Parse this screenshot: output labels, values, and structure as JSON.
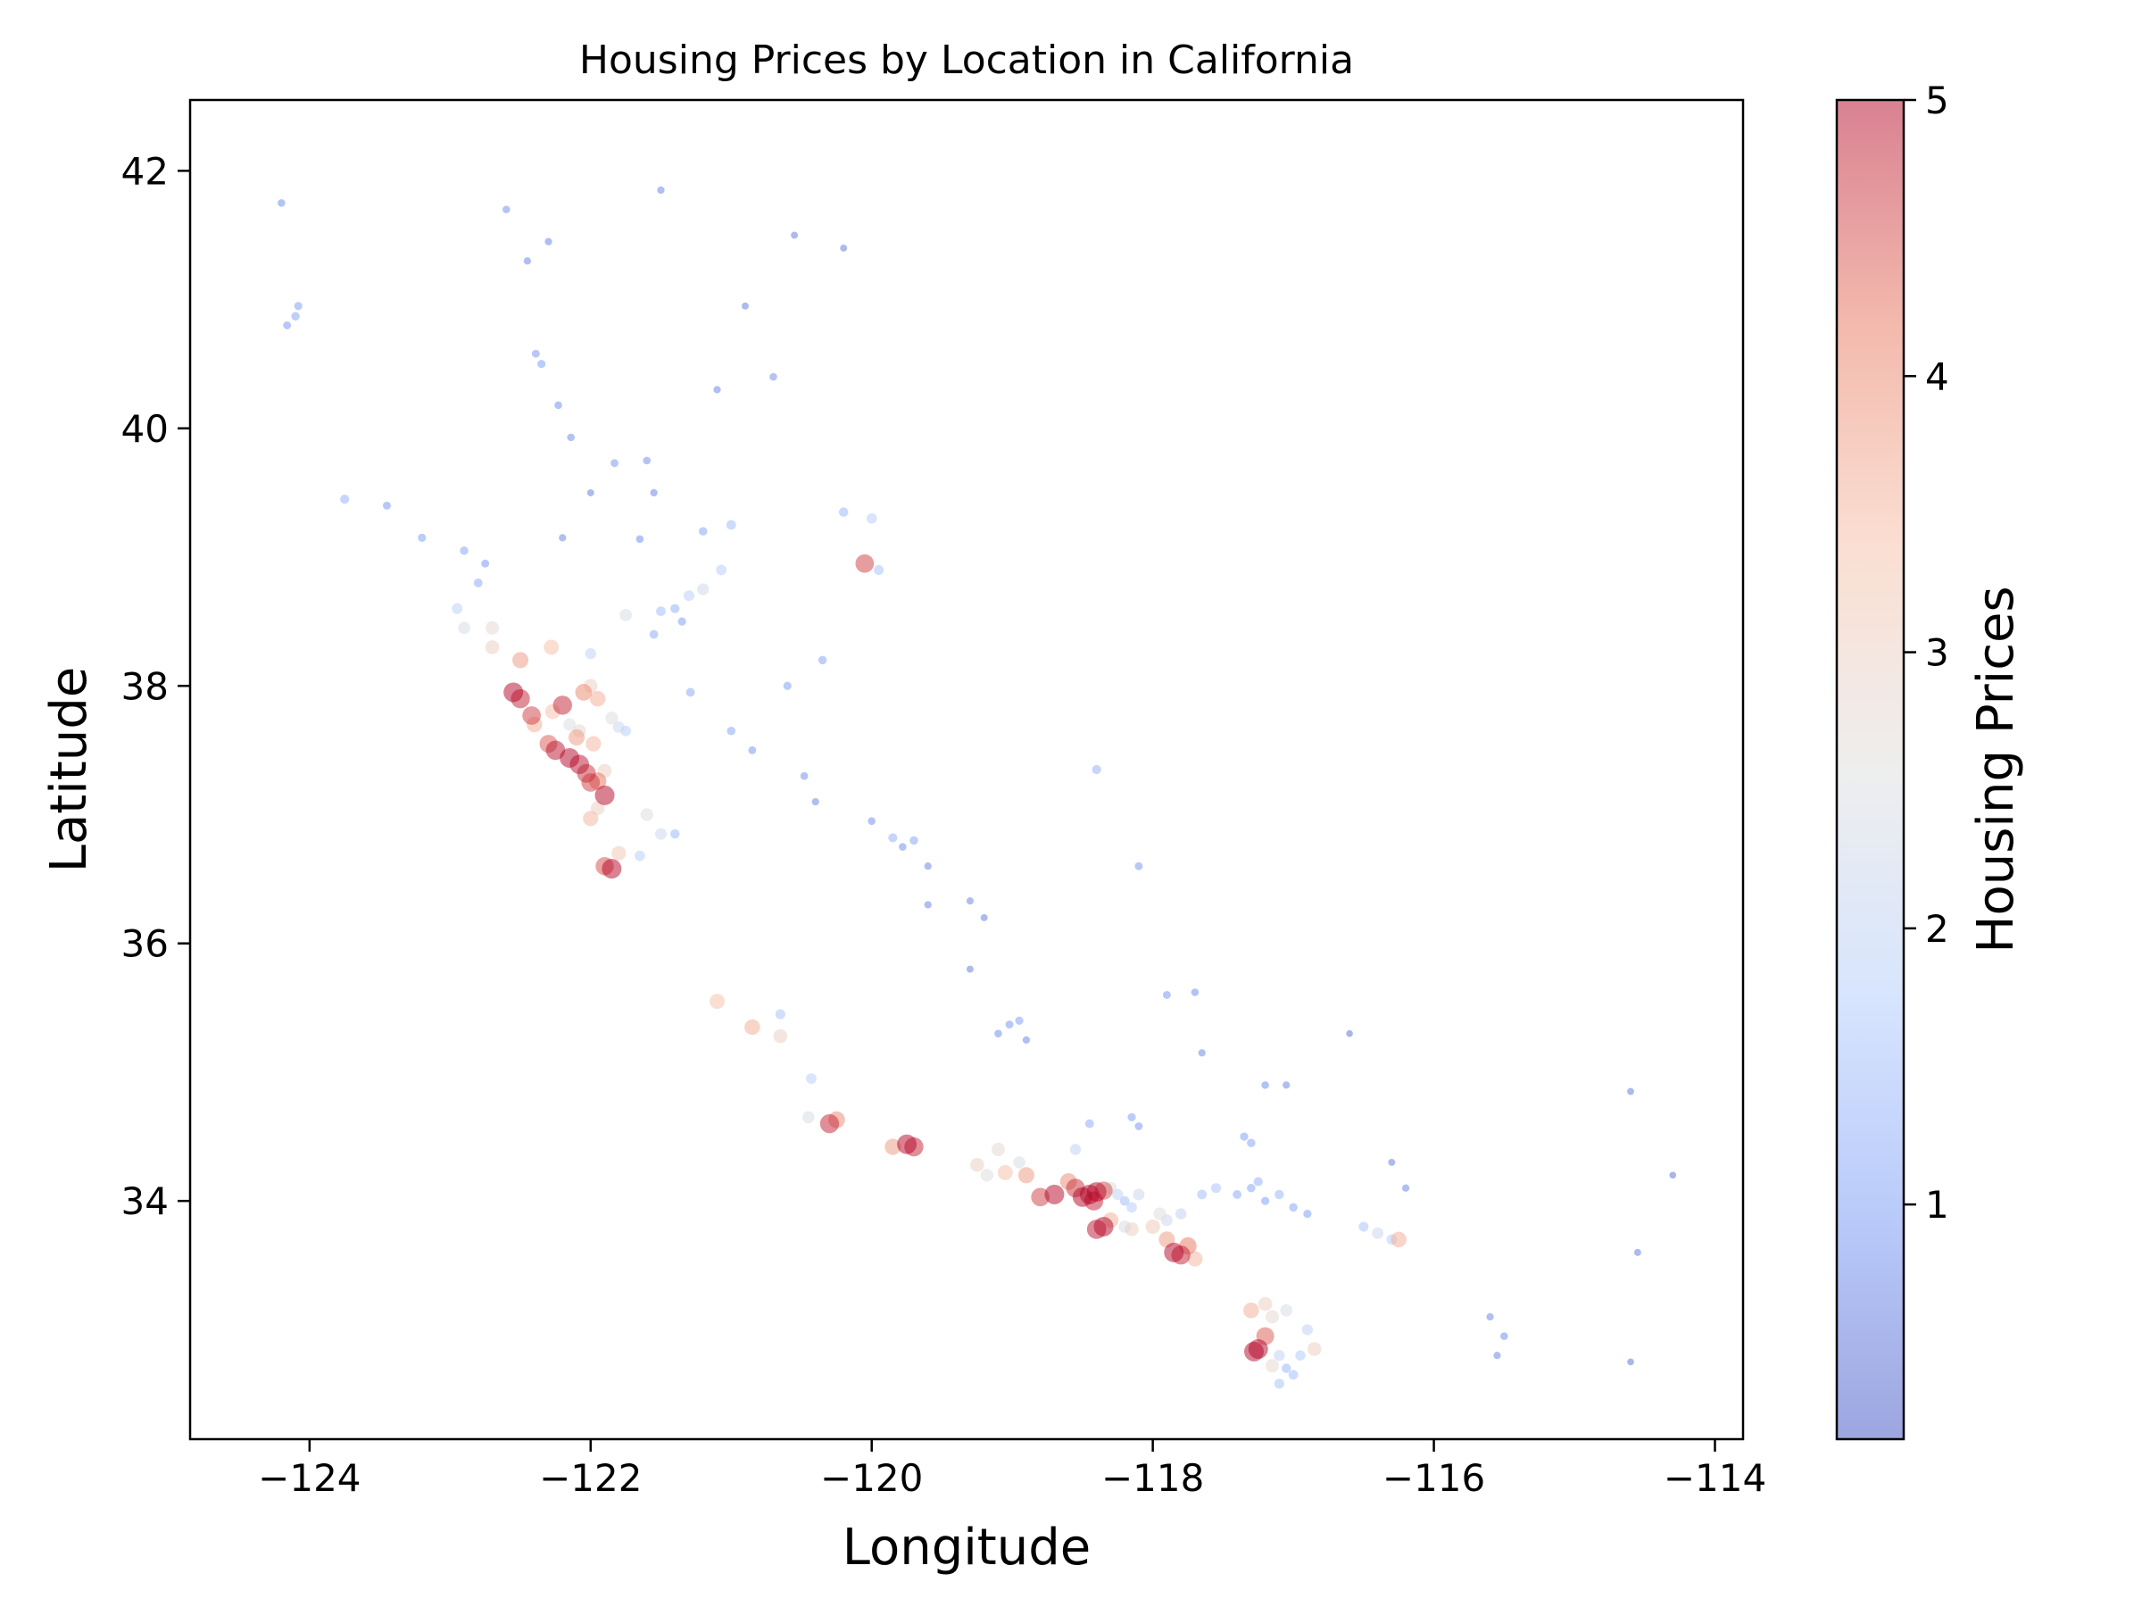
{
  "chart_data": {
    "type": "scatter",
    "title": "Housing Prices by Location in California",
    "xlabel": "Longitude",
    "ylabel": "Latitude",
    "xlim": [
      -124.85,
      -113.8
    ],
    "ylim": [
      32.15,
      42.55
    ],
    "xticks": [
      -124,
      -122,
      -120,
      -118,
      -116,
      -114
    ],
    "xtick_labels": [
      "−124",
      "−122",
      "−120",
      "−118",
      "−116",
      "−114"
    ],
    "yticks": [
      34,
      36,
      38,
      40,
      42
    ],
    "ytick_labels": [
      "34",
      "36",
      "38",
      "40",
      "42"
    ],
    "grid": false,
    "colormap": "coolwarm",
    "colorbar": {
      "label": "Housing Prices",
      "range": [
        0.15,
        5.0
      ],
      "ticks": [
        1,
        2,
        3,
        4,
        5
      ],
      "tick_labels": [
        "1",
        "2",
        "3",
        "4",
        "5"
      ],
      "colors": [
        "#3b4cc0",
        "#7396f5",
        "#b0cbfc",
        "#dddddd",
        "#f6bfa6",
        "#e7745b",
        "#b40426"
      ]
    },
    "marker_alpha": 0.5,
    "clusters_note": "",
    "points": [
      [
        -122.42,
        37.77,
        4.6
      ],
      [
        -122.27,
        37.8,
        3.4
      ],
      [
        -122.2,
        37.85,
        4.8
      ],
      [
        -122.15,
        37.44,
        5.0
      ],
      [
        -122.08,
        37.39,
        4.9
      ],
      [
        -122.03,
        37.32,
        4.7
      ],
      [
        -121.9,
        37.34,
        3.0
      ],
      [
        -121.95,
        37.26,
        4.2
      ],
      [
        -122.55,
        37.95,
        5.0
      ],
      [
        -122.5,
        37.9,
        4.8
      ],
      [
        -122.3,
        37.55,
        4.4
      ],
      [
        -122.25,
        37.5,
        4.9
      ],
      [
        -122.08,
        37.65,
        2.8
      ],
      [
        -121.98,
        37.55,
        3.5
      ],
      [
        -122.4,
        37.7,
        3.6
      ],
      [
        -122.7,
        38.3,
        3.0
      ],
      [
        -122.7,
        38.45,
        2.8
      ],
      [
        -122.5,
        38.2,
        3.8
      ],
      [
        -122.28,
        38.3,
        3.4
      ],
      [
        -122.0,
        38.25,
        2.0
      ],
      [
        -121.9,
        36.6,
        4.5
      ],
      [
        -121.85,
        36.58,
        5.0
      ],
      [
        -121.8,
        36.7,
        3.2
      ],
      [
        -121.65,
        36.68,
        1.8
      ],
      [
        -122.0,
        36.97,
        3.5
      ],
      [
        -121.5,
        36.85,
        2.2
      ],
      [
        -121.6,
        37.0,
        2.6
      ],
      [
        -121.4,
        36.85,
        1.4
      ],
      [
        -122.9,
        38.45,
        2.4
      ],
      [
        -122.95,
        38.6,
        1.9
      ],
      [
        -121.5,
        38.58,
        1.5
      ],
      [
        -121.4,
        38.6,
        1.3
      ],
      [
        -121.3,
        38.7,
        1.9
      ],
      [
        -121.2,
        38.75,
        2.3
      ],
      [
        -121.35,
        38.5,
        1.0
      ],
      [
        -121.07,
        38.9,
        1.8
      ],
      [
        -121.75,
        38.55,
        2.4
      ],
      [
        -121.55,
        38.4,
        1.2
      ],
      [
        -121.2,
        39.2,
        1.1
      ],
      [
        -121.0,
        39.25,
        1.5
      ],
      [
        -121.29,
        37.95,
        1.2
      ],
      [
        -121.0,
        37.65,
        1.1
      ],
      [
        -120.85,
        37.5,
        0.9
      ],
      [
        -120.48,
        37.3,
        0.8
      ],
      [
        -120.4,
        37.1,
        0.7
      ],
      [
        -120.0,
        36.95,
        0.8
      ],
      [
        -119.78,
        36.75,
        0.8
      ],
      [
        -119.7,
        36.8,
        1.1
      ],
      [
        -119.85,
        36.82,
        1.3
      ],
      [
        -119.6,
        36.6,
        0.7
      ],
      [
        -119.3,
        36.33,
        0.7
      ],
      [
        -119.2,
        36.2,
        0.6
      ],
      [
        -119.02,
        35.37,
        0.9
      ],
      [
        -118.95,
        35.4,
        1.0
      ],
      [
        -119.1,
        35.3,
        0.8
      ],
      [
        -118.9,
        35.25,
        0.7
      ],
      [
        -119.3,
        35.8,
        0.6
      ],
      [
        -119.6,
        36.3,
        0.7
      ],
      [
        -120.6,
        38.0,
        1.0
      ],
      [
        -120.35,
        38.2,
        1.1
      ],
      [
        -122.39,
        40.58,
        0.9
      ],
      [
        -122.35,
        40.5,
        1.0
      ],
      [
        -122.23,
        40.18,
        0.8
      ],
      [
        -122.14,
        39.93,
        0.8
      ],
      [
        -121.83,
        39.73,
        0.9
      ],
      [
        -121.6,
        39.75,
        0.8
      ],
      [
        -121.55,
        39.5,
        0.7
      ],
      [
        -121.65,
        39.14,
        0.8
      ],
      [
        -122.2,
        39.15,
        0.7
      ],
      [
        -122.0,
        39.5,
        0.6
      ],
      [
        -124.16,
        40.8,
        0.9
      ],
      [
        -124.1,
        40.87,
        1.1
      ],
      [
        -124.08,
        40.95,
        1.0
      ],
      [
        -124.2,
        41.75,
        0.8
      ],
      [
        -123.75,
        39.45,
        1.3
      ],
      [
        -123.2,
        39.15,
        1.0
      ],
      [
        -122.9,
        39.05,
        1.1
      ],
      [
        -122.75,
        38.95,
        0.9
      ],
      [
        -122.8,
        38.8,
        1.2
      ],
      [
        -123.45,
        39.4,
        0.9
      ],
      [
        -122.6,
        41.7,
        0.8
      ],
      [
        -122.45,
        41.3,
        0.7
      ],
      [
        -122.3,
        41.45,
        0.7
      ],
      [
        -121.5,
        41.85,
        0.7
      ],
      [
        -120.55,
        41.5,
        0.6
      ],
      [
        -120.2,
        41.4,
        0.6
      ],
      [
        -120.9,
        40.95,
        0.6
      ],
      [
        -121.1,
        40.3,
        0.7
      ],
      [
        -120.7,
        40.4,
        0.8
      ],
      [
        -120.0,
        39.3,
        1.8
      ],
      [
        -120.05,
        38.95,
        4.6
      ],
      [
        -119.95,
        38.9,
        1.6
      ],
      [
        -120.2,
        39.35,
        1.4
      ],
      [
        -118.4,
        37.35,
        1.3
      ],
      [
        -118.1,
        36.6,
        0.9
      ],
      [
        -117.9,
        35.6,
        0.9
      ],
      [
        -117.7,
        35.62,
        0.8
      ],
      [
        -117.65,
        35.15,
        0.7
      ],
      [
        -117.2,
        34.9,
        0.8
      ],
      [
        -117.05,
        34.9,
        0.7
      ],
      [
        -116.6,
        35.3,
        0.5
      ],
      [
        -116.3,
        34.3,
        0.6
      ],
      [
        -116.2,
        34.1,
        0.7
      ],
      [
        -115.5,
        32.95,
        0.8
      ],
      [
        -115.55,
        32.8,
        0.7
      ],
      [
        -115.6,
        33.1,
        0.7
      ],
      [
        -114.6,
        34.85,
        0.6
      ],
      [
        -114.55,
        33.6,
        0.6
      ],
      [
        -114.6,
        32.75,
        0.5
      ],
      [
        -114.3,
        34.2,
        0.5
      ],
      [
        -118.25,
        34.05,
        2.0
      ],
      [
        -118.3,
        34.1,
        2.5
      ],
      [
        -118.2,
        34.0,
        1.5
      ],
      [
        -118.15,
        33.95,
        1.8
      ],
      [
        -118.1,
        34.05,
        2.2
      ],
      [
        -118.4,
        34.07,
        5.0
      ],
      [
        -118.45,
        34.05,
        5.0
      ],
      [
        -118.5,
        34.03,
        5.0
      ],
      [
        -118.42,
        34.0,
        4.8
      ],
      [
        -118.35,
        34.08,
        4.5
      ],
      [
        -118.55,
        34.1,
        4.7
      ],
      [
        -118.6,
        34.15,
        4.0
      ],
      [
        -118.7,
        34.05,
        5.0
      ],
      [
        -118.8,
        34.03,
        4.6
      ],
      [
        -118.35,
        33.8,
        5.0
      ],
      [
        -118.4,
        33.78,
        4.9
      ],
      [
        -118.3,
        33.85,
        3.6
      ],
      [
        -118.2,
        33.8,
        2.4
      ],
      [
        -118.15,
        33.78,
        3.0
      ],
      [
        -118.0,
        33.8,
        3.2
      ],
      [
        -117.9,
        33.7,
        3.8
      ],
      [
        -117.85,
        33.6,
        5.0
      ],
      [
        -117.8,
        33.58,
        4.8
      ],
      [
        -117.75,
        33.65,
        4.2
      ],
      [
        -117.7,
        33.55,
        3.5
      ],
      [
        -117.95,
        33.9,
        2.6
      ],
      [
        -117.9,
        33.85,
        2.2
      ],
      [
        -117.8,
        33.9,
        2.0
      ],
      [
        -117.65,
        34.05,
        1.5
      ],
      [
        -117.55,
        34.1,
        1.6
      ],
      [
        -117.4,
        34.05,
        1.2
      ],
      [
        -117.3,
        34.1,
        1.1
      ],
      [
        -117.25,
        34.15,
        1.3
      ],
      [
        -117.2,
        34.0,
        1.0
      ],
      [
        -117.1,
        34.05,
        1.4
      ],
      [
        -117.0,
        33.95,
        1.1
      ],
      [
        -116.9,
        33.9,
        1.0
      ],
      [
        -116.5,
        33.8,
        1.6
      ],
      [
        -116.4,
        33.75,
        2.2
      ],
      [
        -116.3,
        33.7,
        1.8
      ],
      [
        -116.25,
        33.7,
        3.6
      ],
      [
        -118.55,
        34.4,
        2.0
      ],
      [
        -118.45,
        34.6,
        1.2
      ],
      [
        -118.15,
        34.65,
        1.0
      ],
      [
        -118.1,
        34.58,
        0.9
      ],
      [
        -117.3,
        34.45,
        1.1
      ],
      [
        -117.35,
        34.5,
        1.0
      ],
      [
        -117.15,
        32.72,
        2.8
      ],
      [
        -117.25,
        32.85,
        5.0
      ],
      [
        -117.28,
        32.83,
        5.0
      ],
      [
        -117.2,
        32.95,
        4.4
      ],
      [
        -117.1,
        32.8,
        2.0
      ],
      [
        -117.05,
        32.7,
        1.4
      ],
      [
        -117.0,
        32.65,
        1.5
      ],
      [
        -116.95,
        32.8,
        1.7
      ],
      [
        -117.15,
        33.1,
        2.8
      ],
      [
        -117.3,
        33.15,
        3.6
      ],
      [
        -117.2,
        33.2,
        3.0
      ],
      [
        -117.05,
        33.15,
        2.4
      ],
      [
        -116.9,
        33.0,
        2.0
      ],
      [
        -117.1,
        32.58,
        1.6
      ],
      [
        -116.85,
        32.85,
        3.0
      ],
      [
        -119.7,
        34.42,
        4.8
      ],
      [
        -119.75,
        34.44,
        5.0
      ],
      [
        -119.85,
        34.42,
        3.8
      ],
      [
        -119.25,
        34.28,
        3.0
      ],
      [
        -119.18,
        34.2,
        2.6
      ],
      [
        -119.05,
        34.22,
        3.4
      ],
      [
        -118.9,
        34.2,
        3.8
      ],
      [
        -118.95,
        34.3,
        2.4
      ],
      [
        -119.1,
        34.4,
        2.8
      ],
      [
        -120.45,
        34.65,
        2.4
      ],
      [
        -120.43,
        34.95,
        1.8
      ],
      [
        -120.65,
        35.28,
        3.0
      ],
      [
        -120.65,
        35.45,
        1.6
      ],
      [
        -120.85,
        35.35,
        3.6
      ],
      [
        -121.1,
        35.55,
        3.4
      ],
      [
        -120.3,
        34.6,
        4.8
      ],
      [
        -120.25,
        34.63,
        4.0
      ],
      [
        -121.9,
        37.15,
        5.0
      ],
      [
        -122.0,
        37.25,
        4.6
      ],
      [
        -121.95,
        37.05,
        3.0
      ],
      [
        -121.85,
        37.75,
        2.6
      ],
      [
        -121.8,
        37.68,
        2.2
      ],
      [
        -121.75,
        37.65,
        1.8
      ],
      [
        -122.0,
        38.0,
        3.0
      ],
      [
        -122.05,
        37.95,
        4.0
      ],
      [
        -121.95,
        37.9,
        3.6
      ],
      [
        -122.15,
        37.7,
        2.5
      ],
      [
        -122.1,
        37.6,
        3.8
      ]
    ]
  }
}
